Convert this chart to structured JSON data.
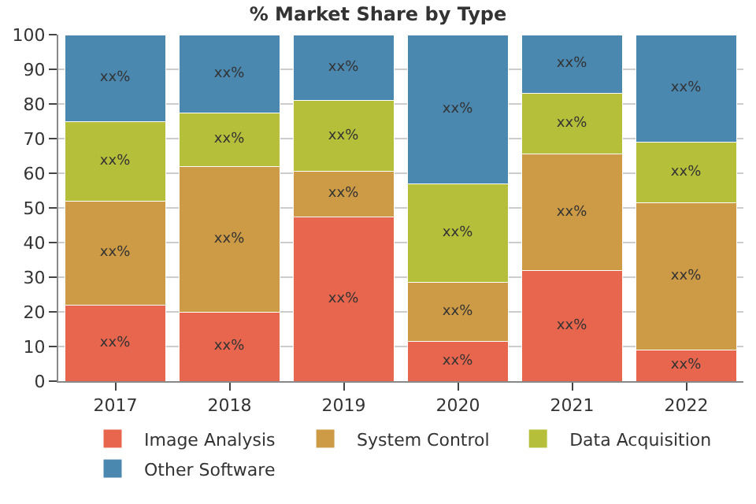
{
  "chart_data": {
    "type": "bar",
    "stacked": true,
    "title": "% Market Share by Type",
    "categories": [
      "2017",
      "2018",
      "2019",
      "2020",
      "2021",
      "2022"
    ],
    "series": [
      {
        "name": "Image Analysis",
        "color": "#e8664e",
        "values": [
          22,
          20,
          47.5,
          11.5,
          32,
          9
        ],
        "value_labels": [
          "xx%",
          "xx%",
          "xx%",
          "xx%",
          "xx%",
          "xx%"
        ]
      },
      {
        "name": "System Control",
        "color": "#cd9b45",
        "values": [
          30,
          42,
          13,
          17,
          33.5,
          42.5
        ],
        "value_labels": [
          "xx%",
          "xx%",
          "xx%",
          "xx%",
          "xx%",
          "xx%"
        ]
      },
      {
        "name": "Data Acquisition",
        "color": "#b5bf3a",
        "values": [
          23,
          15.5,
          20.5,
          28.5,
          17.5,
          17.5
        ],
        "value_labels": [
          "xx%",
          "xx%",
          "xx%",
          "xx%",
          "xx%",
          "xx%"
        ]
      },
      {
        "name": "Other Software",
        "color": "#4a88b0",
        "values": [
          25,
          22.5,
          19,
          43,
          17,
          31
        ],
        "value_labels": [
          "xx%",
          "xx%",
          "xx%",
          "xx%",
          "xx%",
          "xx%"
        ]
      }
    ],
    "ylim": [
      0,
      100
    ],
    "yticks": [
      0,
      10,
      20,
      30,
      40,
      50,
      60,
      70,
      80,
      90,
      100
    ],
    "grid": "y",
    "legend": "bottom"
  }
}
